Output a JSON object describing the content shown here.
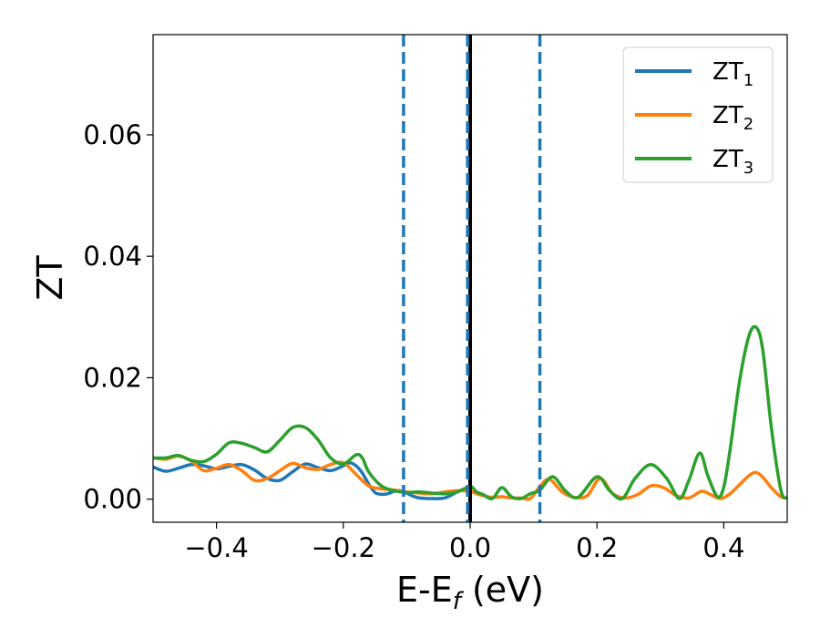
{
  "chart_data": {
    "type": "line",
    "xlabel": "E-E",
    "xlabel_sub": "f",
    "xlabel_unit": "(eV)",
    "ylabel": "ZT",
    "xlim": [
      -0.5,
      0.5
    ],
    "ylim": [
      -0.0038,
      0.0765
    ],
    "xticks": [
      -0.4,
      -0.2,
      0.0,
      0.2,
      0.4
    ],
    "xtick_labels": [
      "−0.4",
      "−0.2",
      "0.0",
      "0.2",
      "0.4"
    ],
    "yticks": [
      0.0,
      0.02,
      0.04,
      0.06
    ],
    "ytick_labels": [
      "0.00",
      "0.02",
      "0.04",
      "0.06"
    ],
    "grid": false,
    "legend": "top-right",
    "vlines": [
      {
        "x": -0.105,
        "style": "dashed",
        "color": "#1f77b4"
      },
      {
        "x": 0.11,
        "style": "dashed",
        "color": "#1f77b4"
      },
      {
        "x": 0.0,
        "style": "solid",
        "color": "#000000"
      },
      {
        "x": -0.004,
        "style": "dashed",
        "color": "#1f77b4"
      }
    ],
    "series": [
      {
        "name": "ZT",
        "sub": "1",
        "color": "#1f77b4",
        "x": [
          -0.5,
          -0.48,
          -0.46,
          -0.44,
          -0.42,
          -0.4,
          -0.38,
          -0.36,
          -0.34,
          -0.32,
          -0.3,
          -0.28,
          -0.26,
          -0.24,
          -0.22,
          -0.2,
          -0.19,
          -0.18,
          -0.17,
          -0.16,
          -0.15,
          -0.14,
          -0.13,
          -0.12,
          -0.11,
          -0.1,
          -0.09,
          -0.08,
          -0.06,
          -0.04,
          -0.02,
          0.0
        ],
        "y": [
          0.0053,
          0.0046,
          0.0051,
          0.0057,
          0.0055,
          0.005,
          0.0054,
          0.0057,
          0.0048,
          0.0034,
          0.0031,
          0.0045,
          0.0058,
          0.0052,
          0.0047,
          0.0055,
          0.006,
          0.0055,
          0.0043,
          0.0025,
          0.0011,
          0.0008,
          0.0009,
          0.0013,
          0.0014,
          0.001,
          0.0005,
          0.0002,
          0.0001,
          0.0002,
          0.0012,
          0.0021
        ]
      },
      {
        "name": "ZT",
        "sub": "2",
        "color": "#ff7f0e",
        "x": [
          -0.5,
          -0.48,
          -0.46,
          -0.44,
          -0.42,
          -0.4,
          -0.38,
          -0.36,
          -0.34,
          -0.32,
          -0.3,
          -0.28,
          -0.26,
          -0.24,
          -0.22,
          -0.2,
          -0.18,
          -0.16,
          -0.14,
          -0.12,
          -0.1,
          -0.08,
          -0.06,
          -0.04,
          -0.02,
          0.0,
          0.01,
          0.02,
          0.035,
          0.05,
          0.065,
          0.08,
          0.095,
          0.11,
          0.125,
          0.145,
          0.165,
          0.185,
          0.205,
          0.225,
          0.245,
          0.265,
          0.285,
          0.305,
          0.325,
          0.345,
          0.365,
          0.38,
          0.395,
          0.41,
          0.425,
          0.44,
          0.45,
          0.46,
          0.475,
          0.49,
          0.5
        ],
        "y": [
          0.0068,
          0.0066,
          0.0071,
          0.0063,
          0.0047,
          0.0051,
          0.0057,
          0.0047,
          0.0031,
          0.0034,
          0.0047,
          0.0059,
          0.0052,
          0.0049,
          0.0057,
          0.006,
          0.0041,
          0.0022,
          0.0017,
          0.0015,
          0.0012,
          0.001,
          0.0009,
          0.0012,
          0.0014,
          0.0013,
          0.0009,
          0.0006,
          0.0003,
          0.0004,
          0.0002,
          0.0002,
          0.0001,
          0.0021,
          0.0033,
          0.0012,
          0.0003,
          0.0006,
          0.0034,
          0.0009,
          0.0002,
          0.0008,
          0.0022,
          0.0019,
          0.0006,
          0.0002,
          0.0013,
          0.0007,
          0.0001,
          0.0009,
          0.0024,
          0.0039,
          0.0044,
          0.0038,
          0.0019,
          0.0004,
          0.0002
        ]
      },
      {
        "name": "ZT",
        "sub": "3",
        "color": "#2ca02c",
        "x": [
          -0.5,
          -0.48,
          -0.46,
          -0.44,
          -0.42,
          -0.4,
          -0.38,
          -0.36,
          -0.34,
          -0.32,
          -0.3,
          -0.28,
          -0.26,
          -0.24,
          -0.22,
          -0.2,
          -0.18,
          -0.17,
          -0.16,
          -0.14,
          -0.12,
          -0.1,
          -0.08,
          -0.06,
          -0.04,
          -0.02,
          0.0,
          0.01,
          0.02,
          0.035,
          0.05,
          0.065,
          0.08,
          0.095,
          0.11,
          0.13,
          0.15,
          0.17,
          0.2,
          0.22,
          0.24,
          0.26,
          0.285,
          0.31,
          0.33,
          0.345,
          0.362,
          0.375,
          0.39,
          0.4,
          0.41,
          0.425,
          0.44,
          0.452,
          0.462,
          0.475,
          0.49,
          0.5
        ],
        "y": [
          0.0068,
          0.0068,
          0.0072,
          0.0064,
          0.0062,
          0.0074,
          0.0093,
          0.0092,
          0.0085,
          0.0078,
          0.0097,
          0.0118,
          0.0118,
          0.0098,
          0.0068,
          0.0058,
          0.0073,
          0.0068,
          0.0045,
          0.0022,
          0.0014,
          0.0011,
          0.0012,
          0.001,
          0.0009,
          0.0012,
          0.0021,
          0.0012,
          0.0008,
          0.0001,
          0.0019,
          0.0004,
          0.0001,
          0.0009,
          0.0015,
          0.0037,
          0.0014,
          0.0003,
          0.0037,
          0.0014,
          0.0001,
          0.0034,
          0.0057,
          0.0034,
          0.0001,
          0.0031,
          0.0076,
          0.0038,
          0.0004,
          0.002,
          0.0082,
          0.0195,
          0.027,
          0.0282,
          0.0242,
          0.0118,
          0.0015,
          0.0002
        ]
      }
    ]
  }
}
